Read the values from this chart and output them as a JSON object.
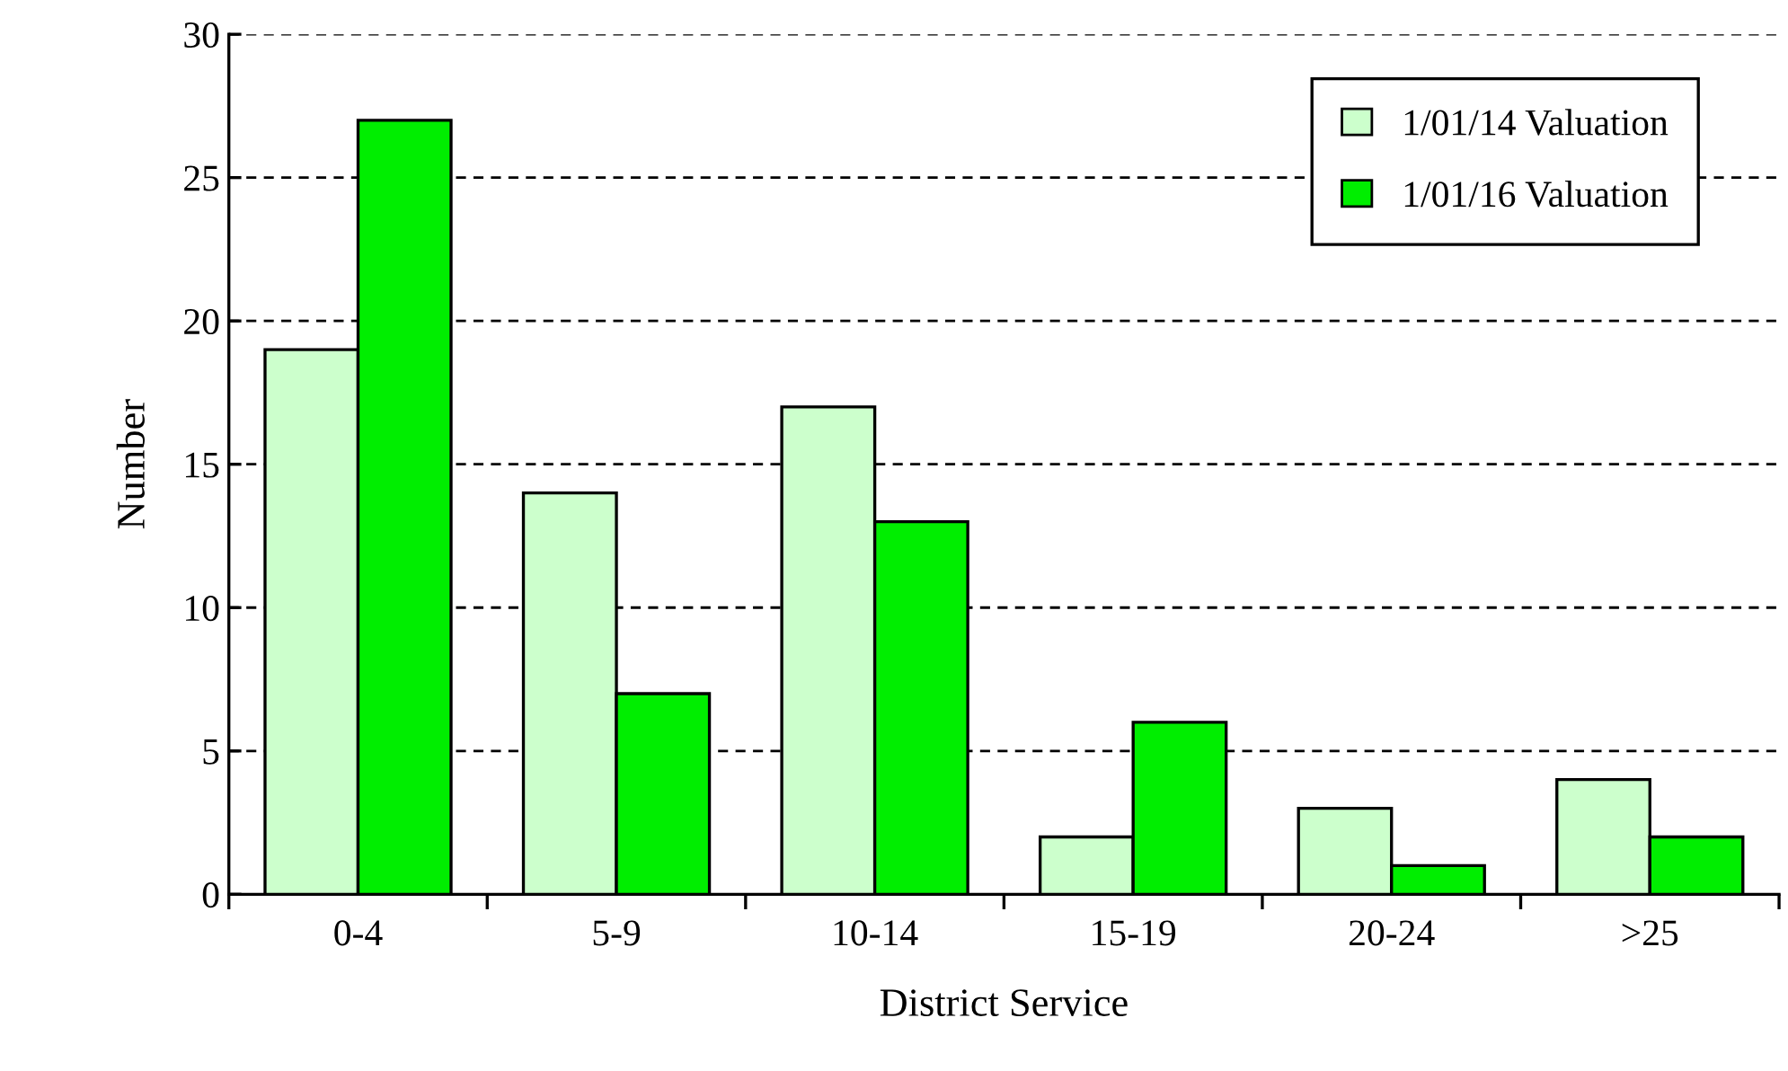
{
  "chart_data": {
    "type": "bar",
    "xlabel": "District Service",
    "ylabel": "Number",
    "categories": [
      "0-4",
      "5-9",
      "10-14",
      "15-19",
      "20-24",
      ">25"
    ],
    "series": [
      {
        "name": "1/01/14 Valuation",
        "color": "#ccffcc",
        "values": [
          19,
          14,
          17,
          2,
          3,
          4
        ]
      },
      {
        "name": "1/01/16 Valuation",
        "color": "#00ee00",
        "values": [
          27,
          7,
          13,
          6,
          1,
          2
        ]
      }
    ],
    "ylim": [
      0,
      30
    ],
    "yticks": [
      0,
      5,
      10,
      15,
      20,
      25,
      30
    ],
    "grid": "y",
    "legend": "top right"
  }
}
